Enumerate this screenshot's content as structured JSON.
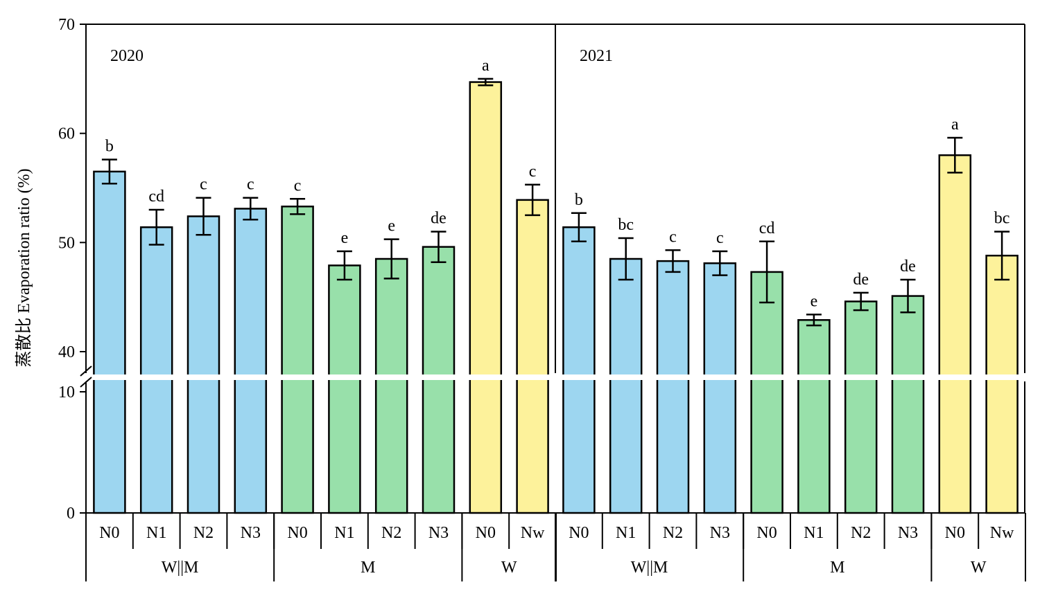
{
  "colors": {
    "WM": "#9dd6f0",
    "M": "#98e0aa",
    "W": "#fdf29b",
    "axis": "#000000",
    "break": "#ffffff"
  },
  "chart_data": {
    "type": "bar",
    "ylabel": "蒸散比 Evaporation ratio (%)",
    "axis_break": true,
    "lower_range": [
      0,
      10
    ],
    "upper_range": [
      40,
      70
    ],
    "yticks_lower": [
      0,
      10
    ],
    "yticks_upper": [
      40,
      50,
      60,
      70
    ],
    "panels": [
      {
        "year": "2020",
        "groups": [
          {
            "name": "W||M",
            "color_key": "WM",
            "bars": [
              {
                "label": "N0",
                "value": 56.5,
                "err": 1.1,
                "letter": "b"
              },
              {
                "label": "N1",
                "value": 51.4,
                "err": 1.6,
                "letter": "cd"
              },
              {
                "label": "N2",
                "value": 52.4,
                "err": 1.7,
                "letter": "c"
              },
              {
                "label": "N3",
                "value": 53.1,
                "err": 1.0,
                "letter": "c"
              }
            ]
          },
          {
            "name": "M",
            "color_key": "M",
            "bars": [
              {
                "label": "N0",
                "value": 53.3,
                "err": 0.7,
                "letter": "c"
              },
              {
                "label": "N1",
                "value": 47.9,
                "err": 1.3,
                "letter": "e"
              },
              {
                "label": "N2",
                "value": 48.5,
                "err": 1.8,
                "letter": "e"
              },
              {
                "label": "N3",
                "value": 49.6,
                "err": 1.4,
                "letter": "de"
              }
            ]
          },
          {
            "name": "W",
            "color_key": "W",
            "bars": [
              {
                "label": "N0",
                "value": 64.7,
                "err": 0.3,
                "letter": "a"
              },
              {
                "label": "Nw",
                "value": 53.9,
                "err": 1.4,
                "letter": "c"
              }
            ]
          }
        ]
      },
      {
        "year": "2021",
        "groups": [
          {
            "name": "W||M",
            "color_key": "WM",
            "bars": [
              {
                "label": "N0",
                "value": 51.4,
                "err": 1.3,
                "letter": "b"
              },
              {
                "label": "N1",
                "value": 48.5,
                "err": 1.9,
                "letter": "bc"
              },
              {
                "label": "N2",
                "value": 48.3,
                "err": 1.0,
                "letter": "c"
              },
              {
                "label": "N3",
                "value": 48.1,
                "err": 1.1,
                "letter": "c"
              }
            ]
          },
          {
            "name": "M",
            "color_key": "M",
            "bars": [
              {
                "label": "N0",
                "value": 47.3,
                "err": 2.8,
                "letter": "cd"
              },
              {
                "label": "N1",
                "value": 42.9,
                "err": 0.5,
                "letter": "e"
              },
              {
                "label": "N2",
                "value": 44.6,
                "err": 0.8,
                "letter": "de"
              },
              {
                "label": "N3",
                "value": 45.1,
                "err": 1.5,
                "letter": "de"
              }
            ]
          },
          {
            "name": "W",
            "color_key": "W",
            "bars": [
              {
                "label": "N0",
                "value": 58.0,
                "err": 1.6,
                "letter": "a"
              },
              {
                "label": "Nw",
                "value": 48.8,
                "err": 2.2,
                "letter": "bc"
              }
            ]
          }
        ]
      }
    ]
  }
}
